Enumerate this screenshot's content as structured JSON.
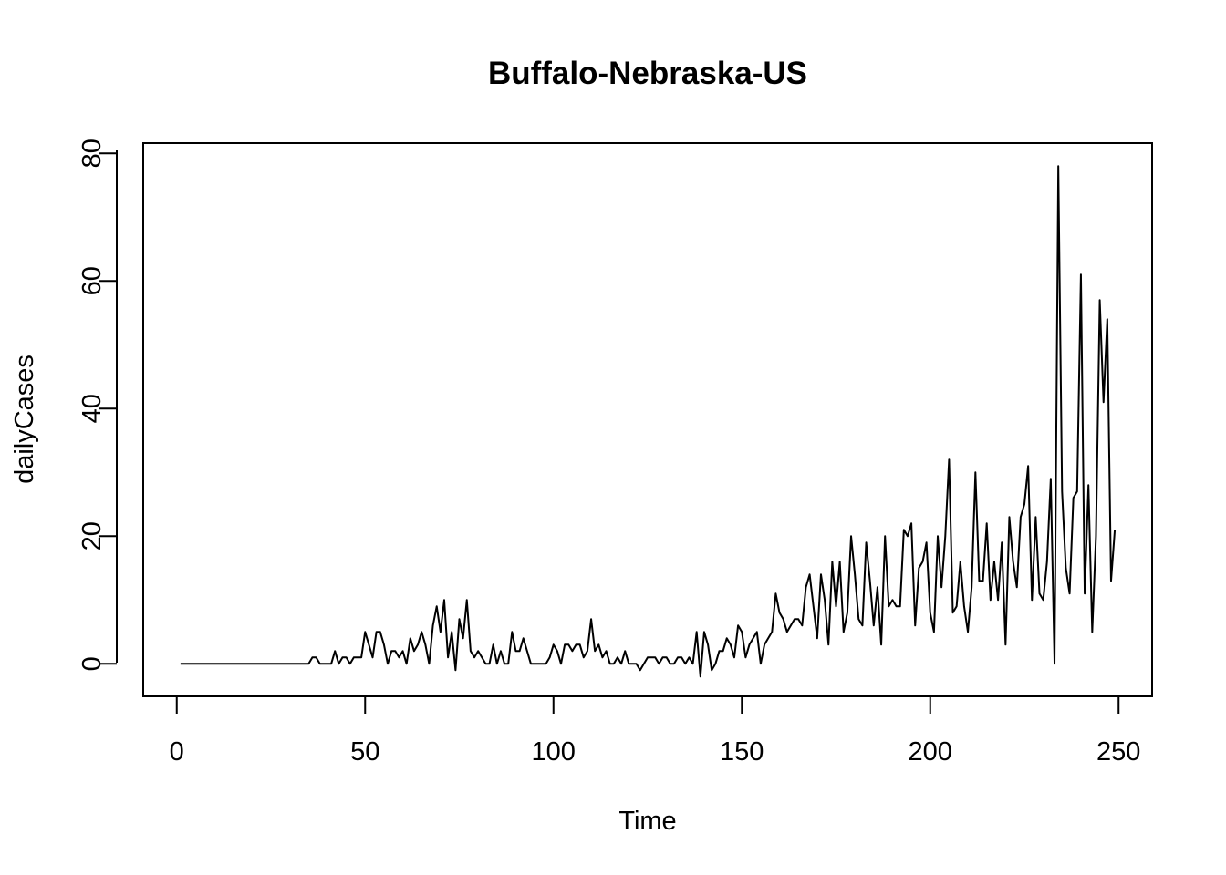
{
  "chart_data": {
    "type": "line",
    "title": "Buffalo-Nebraska-US",
    "xlabel": "Time",
    "ylabel": "dailyCases",
    "xlim": [
      -8.9,
      258.9
    ],
    "ylim": [
      -5.1,
      81.6
    ],
    "x_ticks": [
      0,
      50,
      100,
      150,
      200,
      250
    ],
    "y_ticks": [
      0,
      20,
      40,
      60,
      80
    ],
    "grid": false,
    "legend": "none",
    "line_color": "#000000",
    "x_start": 1,
    "values": [
      0,
      0,
      0,
      0,
      0,
      0,
      0,
      0,
      0,
      0,
      0,
      0,
      0,
      0,
      0,
      0,
      0,
      0,
      0,
      0,
      0,
      0,
      0,
      0,
      0,
      0,
      0,
      0,
      0,
      0,
      0,
      0,
      0,
      0,
      0,
      1,
      1,
      0,
      0,
      0,
      0,
      2,
      0,
      1,
      1,
      0,
      1,
      1,
      1,
      5,
      3,
      1,
      5,
      5,
      3,
      0,
      2,
      2,
      1,
      2,
      0,
      4,
      2,
      3,
      5,
      3,
      0,
      6,
      9,
      5,
      10,
      1,
      5,
      -1,
      7,
      4,
      10,
      2,
      1,
      2,
      1,
      0,
      0,
      3,
      0,
      2,
      0,
      0,
      5,
      2,
      2,
      4,
      2,
      0,
      0,
      0,
      0,
      0,
      1,
      3,
      2,
      0,
      3,
      3,
      2,
      3,
      3,
      1,
      2,
      7,
      2,
      3,
      1,
      2,
      0,
      0,
      1,
      0,
      2,
      0,
      0,
      0,
      -1,
      0,
      1,
      1,
      1,
      0,
      1,
      1,
      0,
      0,
      1,
      1,
      0,
      1,
      0,
      5,
      -2,
      5,
      3,
      -1,
      0,
      2,
      2,
      4,
      3,
      1,
      6,
      5,
      1,
      3,
      4,
      5,
      0,
      3,
      4,
      5,
      11,
      8,
      7,
      5,
      6,
      7,
      7,
      6,
      12,
      14,
      9,
      4,
      14,
      10,
      3,
      16,
      9,
      16,
      5,
      8,
      20,
      14,
      7,
      6,
      19,
      13,
      6,
      12,
      3,
      20,
      9,
      10,
      9,
      9,
      21,
      20,
      22,
      6,
      15,
      16,
      19,
      8,
      5,
      20,
      12,
      20,
      32,
      8,
      9,
      16,
      9,
      5,
      12,
      30,
      13,
      13,
      22,
      10,
      16,
      10,
      19,
      3,
      23,
      16,
      12,
      23,
      25,
      31,
      10,
      23,
      11,
      10,
      16,
      29,
      0,
      78,
      27,
      15,
      11,
      26,
      27,
      61,
      11,
      28,
      5,
      20,
      57,
      41,
      54,
      13,
      21
    ]
  }
}
